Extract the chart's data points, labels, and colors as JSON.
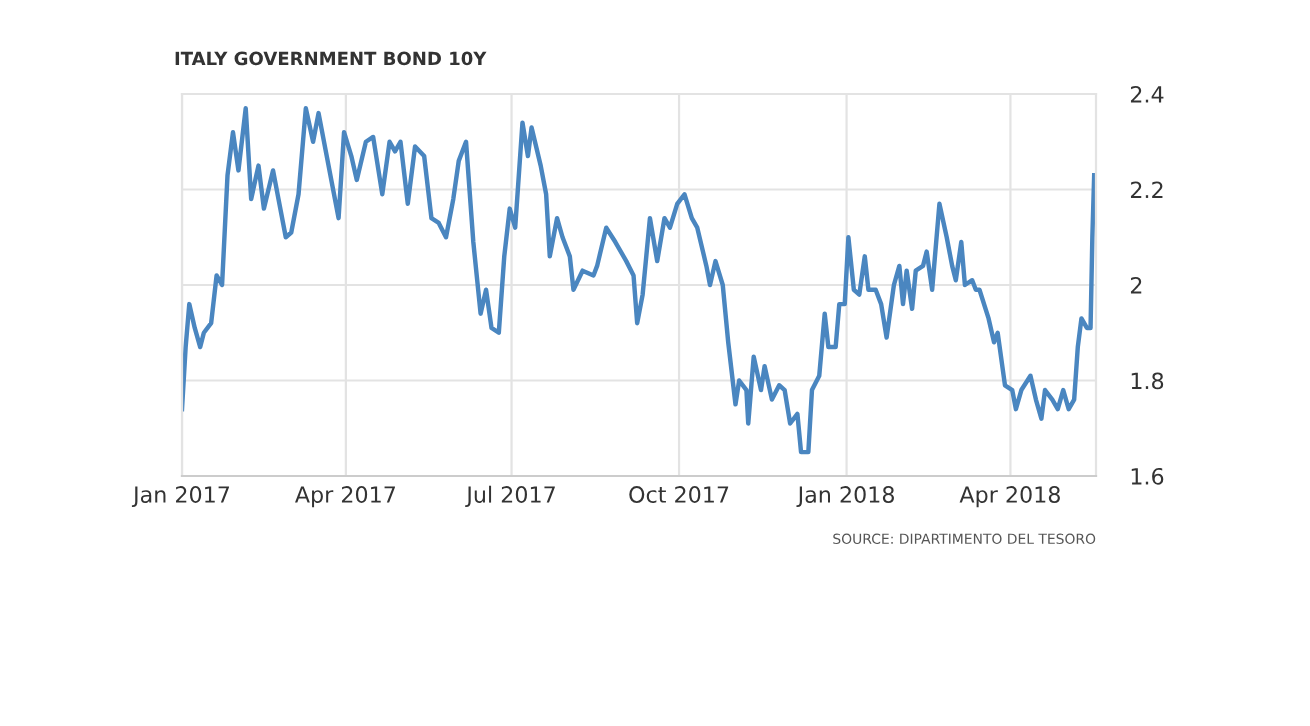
{
  "chart_data": {
    "type": "line",
    "title": "ITALY GOVERNMENT BOND 10Y",
    "annotations": [
      "SOURCE: DIPARTIMENTO DEL TESORO"
    ],
    "x": [
      "2017-01-01",
      "2017-01-03",
      "2017-01-05",
      "2017-01-08",
      "2017-01-11",
      "2017-01-13",
      "2017-01-17",
      "2017-01-20",
      "2017-01-23",
      "2017-01-26",
      "2017-01-29",
      "2017-02-01",
      "2017-02-05",
      "2017-02-08",
      "2017-02-12",
      "2017-02-15",
      "2017-02-20",
      "2017-02-23",
      "2017-02-27",
      "2017-03-02",
      "2017-03-06",
      "2017-03-10",
      "2017-03-14",
      "2017-03-17",
      "2017-03-21",
      "2017-03-28",
      "2017-03-31",
      "2017-04-04",
      "2017-04-07",
      "2017-04-12",
      "2017-04-16",
      "2017-04-21",
      "2017-04-25",
      "2017-04-28",
      "2017-05-01",
      "2017-05-05",
      "2017-05-09",
      "2017-05-14",
      "2017-05-18",
      "2017-05-22",
      "2017-05-26",
      "2017-05-30",
      "2017-06-02",
      "2017-06-06",
      "2017-06-10",
      "2017-06-14",
      "2017-06-17",
      "2017-06-20",
      "2017-06-24",
      "2017-06-27",
      "2017-06-30",
      "2017-07-03",
      "2017-07-07",
      "2017-07-10",
      "2017-07-12",
      "2017-07-17",
      "2017-07-20",
      "2017-07-22",
      "2017-07-26",
      "2017-07-29",
      "2017-08-02",
      "2017-08-04",
      "2017-08-09",
      "2017-08-15",
      "2017-08-17",
      "2017-08-22",
      "2017-08-27",
      "2017-09-02",
      "2017-09-06",
      "2017-09-08",
      "2017-09-11",
      "2017-09-15",
      "2017-09-19",
      "2017-09-23",
      "2017-09-26",
      "2017-09-30",
      "2017-10-04",
      "2017-10-08",
      "2017-10-11",
      "2017-10-16",
      "2017-10-18",
      "2017-10-21",
      "2017-10-25",
      "2017-10-28",
      "2017-11-01",
      "2017-11-03",
      "2017-11-07",
      "2017-11-08",
      "2017-11-11",
      "2017-11-15",
      "2017-11-17",
      "2017-11-21",
      "2017-11-25",
      "2017-11-28",
      "2017-12-01",
      "2017-12-05",
      "2017-12-07",
      "2017-12-11",
      "2017-12-13",
      "2017-12-17",
      "2017-12-20",
      "2017-12-22",
      "2017-12-26",
      "2017-12-28",
      "2017-12-31",
      "2018-01-02",
      "2018-01-05",
      "2018-01-08",
      "2018-01-11",
      "2018-01-13",
      "2018-01-17",
      "2018-01-20",
      "2018-01-23",
      "2018-01-27",
      "2018-01-30",
      "2018-02-01",
      "2018-02-03",
      "2018-02-06",
      "2018-02-08",
      "2018-02-12",
      "2018-02-14",
      "2018-02-17",
      "2018-02-21",
      "2018-02-25",
      "2018-02-28",
      "2018-03-02",
      "2018-03-05",
      "2018-03-07",
      "2018-03-11",
      "2018-03-13",
      "2018-03-15",
      "2018-03-20",
      "2018-03-23",
      "2018-03-25",
      "2018-03-29",
      "2018-04-02",
      "2018-04-04",
      "2018-04-07",
      "2018-04-12",
      "2018-04-15",
      "2018-04-18",
      "2018-04-20",
      "2018-04-24",
      "2018-04-27",
      "2018-04-30",
      "2018-05-03",
      "2018-05-06",
      "2018-05-08",
      "2018-05-10",
      "2018-05-13",
      "2018-05-15",
      "2018-05-16",
      "2018-05-17"
    ],
    "series": [
      {
        "color": "#4a86c0",
        "values": [
          1.74,
          1.87,
          1.96,
          1.91,
          1.87,
          1.9,
          1.92,
          2.02,
          2.0,
          2.23,
          2.32,
          2.24,
          2.37,
          2.18,
          2.25,
          2.16,
          2.24,
          2.18,
          2.1,
          2.11,
          2.19,
          2.37,
          2.3,
          2.36,
          2.28,
          2.14,
          2.32,
          2.27,
          2.22,
          2.3,
          2.31,
          2.19,
          2.3,
          2.28,
          2.3,
          2.17,
          2.29,
          2.27,
          2.14,
          2.13,
          2.1,
          2.18,
          2.26,
          2.3,
          2.09,
          1.94,
          1.99,
          1.91,
          1.9,
          2.06,
          2.16,
          2.12,
          2.34,
          2.27,
          2.33,
          2.25,
          2.19,
          2.06,
          2.14,
          2.1,
          2.06,
          1.99,
          2.03,
          2.02,
          2.04,
          2.12,
          2.09,
          2.05,
          2.02,
          1.92,
          1.98,
          2.14,
          2.05,
          2.14,
          2.12,
          2.17,
          2.19,
          2.14,
          2.12,
          2.04,
          2.0,
          2.05,
          2.0,
          1.88,
          1.75,
          1.8,
          1.78,
          1.71,
          1.85,
          1.78,
          1.83,
          1.76,
          1.79,
          1.78,
          1.71,
          1.73,
          1.65,
          1.65,
          1.78,
          1.81,
          1.94,
          1.87,
          1.87,
          1.96,
          1.96,
          2.1,
          1.99,
          1.98,
          2.06,
          1.99,
          1.99,
          1.96,
          1.89,
          2.0,
          2.04,
          1.96,
          2.03,
          1.95,
          2.03,
          2.04,
          2.07,
          1.99,
          2.17,
          2.1,
          2.04,
          2.01,
          2.09,
          2.0,
          2.01,
          1.99,
          1.99,
          1.93,
          1.88,
          1.9,
          1.79,
          1.78,
          1.74,
          1.78,
          1.81,
          1.76,
          1.72,
          1.78,
          1.76,
          1.74,
          1.78,
          1.74,
          1.76,
          1.87,
          1.93,
          1.91,
          1.91,
          2.1,
          2.23
        ]
      }
    ],
    "xlim": [
      "2017-01-01",
      "2018-05-18"
    ],
    "xticks": [
      {
        "value": "2017-01-01",
        "label": "Jan 2017"
      },
      {
        "value": "2017-04-01",
        "label": "Apr 2017"
      },
      {
        "value": "2017-07-01",
        "label": "Jul 2017"
      },
      {
        "value": "2017-10-01",
        "label": "Oct 2017"
      },
      {
        "value": "2018-01-01",
        "label": "Jan 2018"
      },
      {
        "value": "2018-04-01",
        "label": "Apr 2018"
      }
    ],
    "ylim": [
      1.6,
      2.4
    ],
    "yticks": [
      1.6,
      1.8,
      2,
      2.2,
      2.4
    ],
    "grid": true,
    "legend": false,
    "marker": "none",
    "line_style": "solid"
  }
}
